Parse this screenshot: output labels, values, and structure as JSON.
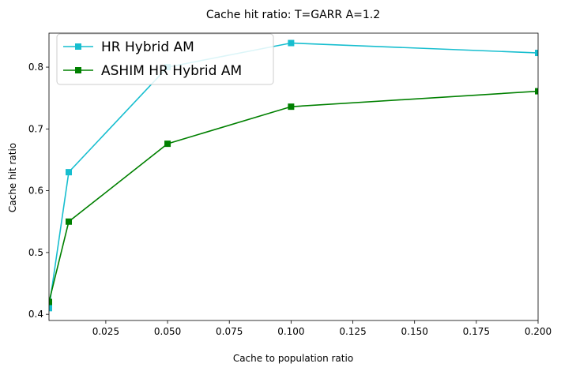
{
  "chart_data": {
    "type": "line",
    "title": "Cache hit ratio: T=GARR A=1.2",
    "xlabel": "Cache to population ratio",
    "ylabel": "Cache hit ratio",
    "xlim": [
      0.002,
      0.2
    ],
    "ylim": [
      0.39,
      0.855
    ],
    "xticks": [
      0.025,
      0.05,
      0.075,
      0.1,
      0.125,
      0.15,
      0.175,
      0.2
    ],
    "xtick_labels": [
      "0.025",
      "0.050",
      "0.075",
      "0.100",
      "0.125",
      "0.150",
      "0.175",
      "0.200"
    ],
    "yticks": [
      0.4,
      0.5,
      0.6,
      0.7,
      0.8
    ],
    "ytick_labels": [
      "0.4",
      "0.5",
      "0.6",
      "0.7",
      "0.8"
    ],
    "grid": false,
    "legend_position": "upper-left",
    "series": [
      {
        "name": "HR Hybrid AM",
        "color": "#17becf",
        "marker": "square",
        "x": [
          0.002,
          0.01,
          0.05,
          0.1,
          0.2
        ],
        "y": [
          0.41,
          0.63,
          0.8,
          0.839,
          0.823
        ]
      },
      {
        "name": "ASHIM HR Hybrid AM",
        "color": "#008000",
        "marker": "square",
        "x": [
          0.002,
          0.01,
          0.05,
          0.1,
          0.2
        ],
        "y": [
          0.42,
          0.55,
          0.676,
          0.736,
          0.761
        ]
      }
    ]
  }
}
